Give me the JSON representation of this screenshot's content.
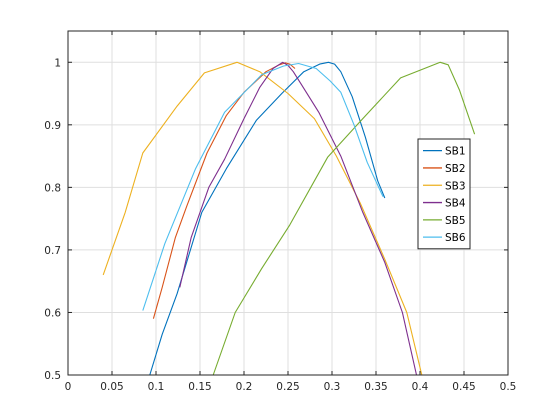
{
  "chart_data": {
    "type": "line",
    "title": "",
    "xlabel": "",
    "ylabel": "",
    "xlim": [
      0,
      0.5
    ],
    "ylim": [
      0.5,
      1.05
    ],
    "xticks": [
      0,
      0.05,
      0.1,
      0.15,
      0.2,
      0.25,
      0.3,
      0.35,
      0.4,
      0.45,
      0.5
    ],
    "xtick_labels": [
      "0",
      "0.05",
      "0.1",
      "0.15",
      "0.2",
      "0.25",
      "0.3",
      "0.35",
      "0.4",
      "0.45",
      "0.5"
    ],
    "yticks": [
      0.5,
      0.6,
      0.7,
      0.8,
      0.9,
      1.0
    ],
    "ytick_labels": [
      "0.5",
      "0.6",
      "0.7",
      "0.8",
      "0.9",
      "1"
    ],
    "grid": true,
    "box": true,
    "legend_position": "right",
    "series": [
      {
        "name": "SB1",
        "color": "#0072BD",
        "x": [
          0.093,
          0.107,
          0.124,
          0.152,
          0.18,
          0.214,
          0.243,
          0.268,
          0.286,
          0.296,
          0.303,
          0.31,
          0.323,
          0.338,
          0.352,
          0.36
        ],
        "y": [
          0.5,
          0.565,
          0.63,
          0.76,
          0.83,
          0.907,
          0.95,
          0.985,
          0.997,
          1.0,
          0.997,
          0.985,
          0.945,
          0.88,
          0.81,
          0.783
        ]
      },
      {
        "name": "SB2",
        "color": "#D95319",
        "x": [
          0.097,
          0.107,
          0.122,
          0.135,
          0.158,
          0.18,
          0.2,
          0.225,
          0.24,
          0.247,
          0.252,
          0.258
        ],
        "y": [
          0.59,
          0.64,
          0.72,
          0.77,
          0.855,
          0.915,
          0.952,
          0.985,
          0.996,
          0.999,
          0.997,
          0.99
        ]
      },
      {
        "name": "SB3",
        "color": "#EDB120",
        "x": [
          0.04,
          0.065,
          0.085,
          0.124,
          0.155,
          0.192,
          0.218,
          0.25,
          0.28,
          0.305,
          0.332,
          0.36,
          0.385,
          0.402
        ],
        "y": [
          0.66,
          0.76,
          0.855,
          0.93,
          0.983,
          1.0,
          0.985,
          0.95,
          0.91,
          0.85,
          0.775,
          0.685,
          0.6,
          0.5
        ]
      },
      {
        "name": "SB4",
        "color": "#7E2F8E",
        "x": [
          0.127,
          0.14,
          0.16,
          0.178,
          0.2,
          0.218,
          0.233,
          0.244,
          0.25,
          0.256,
          0.265,
          0.285,
          0.31,
          0.335,
          0.36,
          0.38,
          0.396
        ],
        "y": [
          0.64,
          0.72,
          0.8,
          0.845,
          0.91,
          0.96,
          0.99,
          1.0,
          0.995,
          0.985,
          0.965,
          0.92,
          0.85,
          0.76,
          0.68,
          0.6,
          0.5
        ]
      },
      {
        "name": "SB5",
        "color": "#77AC30",
        "x": [
          0.165,
          0.19,
          0.22,
          0.252,
          0.295,
          0.335,
          0.378,
          0.405,
          0.423,
          0.432,
          0.445,
          0.462
        ],
        "y": [
          0.5,
          0.6,
          0.67,
          0.74,
          0.848,
          0.91,
          0.975,
          0.99,
          1.0,
          0.996,
          0.955,
          0.885
        ]
      },
      {
        "name": "SB6",
        "color": "#4DBEEE",
        "x": [
          0.085,
          0.11,
          0.145,
          0.178,
          0.22,
          0.245,
          0.262,
          0.282,
          0.298,
          0.31,
          0.325,
          0.34,
          0.358
        ],
        "y": [
          0.603,
          0.71,
          0.83,
          0.92,
          0.98,
          0.994,
          0.998,
          0.99,
          0.97,
          0.952,
          0.9,
          0.84,
          0.785
        ]
      }
    ]
  }
}
